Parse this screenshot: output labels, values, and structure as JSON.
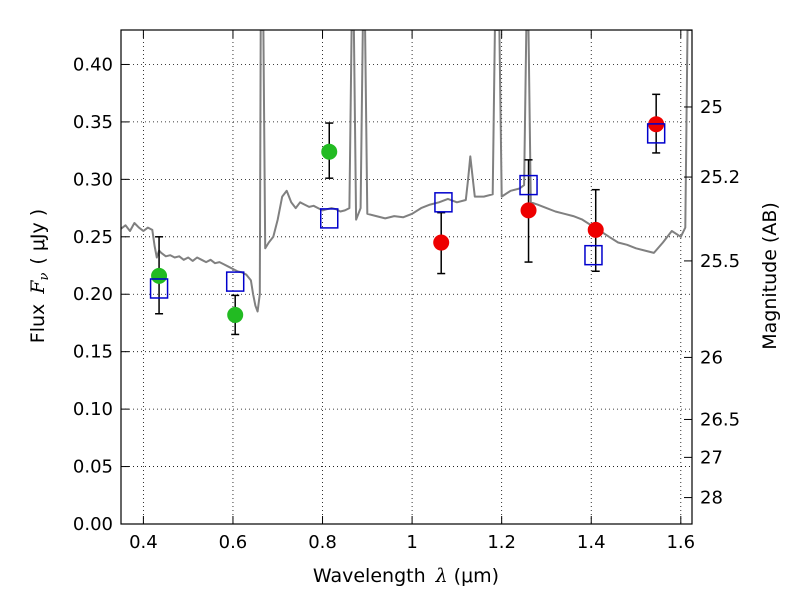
{
  "chart_data": {
    "type": "scatter",
    "title": "",
    "xlabel": "Wavelength",
    "xlabel_symbol": "λ",
    "xlabel_unit": "(μm)",
    "ylabel": "Flux",
    "ylabel_symbol": "F",
    "ylabel_subscript": "ν",
    "ylabel_unit": "( μJy )",
    "y2label": "Magnitude (AB)",
    "xlim": [
      0.35,
      1.625
    ],
    "ylim": [
      0.0,
      0.43
    ],
    "xticks": [
      0.4,
      0.6,
      0.8,
      1.0,
      1.2,
      1.4,
      1.6
    ],
    "xtick_labels": [
      "0.4",
      "0.6",
      "0.8",
      "1",
      "1.2",
      "1.4",
      "1.6"
    ],
    "yticks": [
      0.0,
      0.05,
      0.1,
      0.15,
      0.2,
      0.25,
      0.3,
      0.35,
      0.4
    ],
    "ytick_labels": [
      "0.00",
      "0.05",
      "0.10",
      "0.15",
      "0.20",
      "0.25",
      "0.30",
      "0.35",
      "0.40"
    ],
    "y2ticks": [
      {
        "label": "25",
        "flux": 0.363
      },
      {
        "label": "25.2",
        "flux": 0.302
      },
      {
        "label": "25.5",
        "flux": 0.229
      },
      {
        "label": "26",
        "flux": 0.145
      },
      {
        "label": "26.5",
        "flux": 0.091
      },
      {
        "label": "27",
        "flux": 0.058
      },
      {
        "label": "28",
        "flux": 0.023
      }
    ],
    "grid": true,
    "grid_style": "dotted",
    "colors": {
      "model": "#808080",
      "green_points": "#22bb22",
      "red_points": "#ee0000",
      "model_squares": "#0000cc",
      "errorbars": "#000000"
    },
    "series": [
      {
        "kind": "line",
        "points": [
          [
            0.35,
            0.257
          ],
          [
            0.36,
            0.26
          ],
          [
            0.37,
            0.255
          ],
          [
            0.38,
            0.262
          ],
          [
            0.39,
            0.258
          ],
          [
            0.4,
            0.255
          ],
          [
            0.41,
            0.258
          ],
          [
            0.42,
            0.256
          ],
          [
            0.425,
            0.242
          ],
          [
            0.43,
            0.232
          ],
          [
            0.435,
            0.238
          ],
          [
            0.44,
            0.236
          ],
          [
            0.45,
            0.233
          ],
          [
            0.46,
            0.234
          ],
          [
            0.47,
            0.232
          ],
          [
            0.48,
            0.233
          ],
          [
            0.49,
            0.23
          ],
          [
            0.5,
            0.232
          ],
          [
            0.51,
            0.229
          ],
          [
            0.52,
            0.232
          ],
          [
            0.53,
            0.23
          ],
          [
            0.54,
            0.228
          ],
          [
            0.55,
            0.23
          ],
          [
            0.56,
            0.227
          ],
          [
            0.57,
            0.228
          ],
          [
            0.58,
            0.226
          ],
          [
            0.59,
            0.224
          ],
          [
            0.6,
            0.222
          ],
          [
            0.61,
            0.22
          ],
          [
            0.62,
            0.219
          ],
          [
            0.63,
            0.217
          ],
          [
            0.64,
            0.212
          ],
          [
            0.645,
            0.2
          ],
          [
            0.65,
            0.19
          ],
          [
            0.655,
            0.185
          ],
          [
            0.66,
            0.2
          ],
          [
            0.662,
            0.43
          ],
          [
            0.668,
            0.43
          ],
          [
            0.672,
            0.24
          ],
          [
            0.68,
            0.245
          ],
          [
            0.69,
            0.25
          ],
          [
            0.7,
            0.265
          ],
          [
            0.71,
            0.285
          ],
          [
            0.72,
            0.29
          ],
          [
            0.73,
            0.28
          ],
          [
            0.74,
            0.275
          ],
          [
            0.75,
            0.28
          ],
          [
            0.76,
            0.278
          ],
          [
            0.77,
            0.276
          ],
          [
            0.78,
            0.277
          ],
          [
            0.79,
            0.275
          ],
          [
            0.8,
            0.273
          ],
          [
            0.81,
            0.274
          ],
          [
            0.82,
            0.275
          ],
          [
            0.83,
            0.274
          ],
          [
            0.84,
            0.272
          ],
          [
            0.85,
            0.273
          ],
          [
            0.86,
            0.275
          ],
          [
            0.865,
            0.43
          ],
          [
            0.87,
            0.43
          ],
          [
            0.875,
            0.265
          ],
          [
            0.885,
            0.275
          ],
          [
            0.89,
            0.43
          ],
          [
            0.895,
            0.43
          ],
          [
            0.9,
            0.27
          ],
          [
            0.92,
            0.268
          ],
          [
            0.94,
            0.266
          ],
          [
            0.96,
            0.268
          ],
          [
            0.98,
            0.267
          ],
          [
            1.0,
            0.27
          ],
          [
            1.02,
            0.275
          ],
          [
            1.04,
            0.278
          ],
          [
            1.06,
            0.28
          ],
          [
            1.08,
            0.283
          ],
          [
            1.1,
            0.28
          ],
          [
            1.12,
            0.282
          ],
          [
            1.125,
            0.3
          ],
          [
            1.13,
            0.32
          ],
          [
            1.135,
            0.302
          ],
          [
            1.14,
            0.285
          ],
          [
            1.16,
            0.285
          ],
          [
            1.18,
            0.287
          ],
          [
            1.185,
            0.43
          ],
          [
            1.195,
            0.43
          ],
          [
            1.2,
            0.285
          ],
          [
            1.22,
            0.29
          ],
          [
            1.24,
            0.292
          ],
          [
            1.25,
            0.295
          ],
          [
            1.255,
            0.43
          ],
          [
            1.26,
            0.43
          ],
          [
            1.265,
            0.28
          ],
          [
            1.28,
            0.278
          ],
          [
            1.3,
            0.275
          ],
          [
            1.32,
            0.272
          ],
          [
            1.34,
            0.27
          ],
          [
            1.36,
            0.268
          ],
          [
            1.38,
            0.265
          ],
          [
            1.4,
            0.26
          ],
          [
            1.42,
            0.255
          ],
          [
            1.44,
            0.25
          ],
          [
            1.46,
            0.245
          ],
          [
            1.48,
            0.243
          ],
          [
            1.5,
            0.24
          ],
          [
            1.52,
            0.238
          ],
          [
            1.54,
            0.236
          ],
          [
            1.56,
            0.245
          ],
          [
            1.58,
            0.255
          ],
          [
            1.6,
            0.25
          ],
          [
            1.61,
            0.258
          ],
          [
            1.615,
            0.43
          ],
          [
            1.625,
            0.43
          ]
        ]
      },
      {
        "kind": "scatter",
        "marker": "filled-circle",
        "points": [
          {
            "x": 0.435,
            "y": 0.216,
            "yerr": [
              0.183,
              0.25
            ]
          },
          {
            "x": 0.605,
            "y": 0.182,
            "yerr": [
              0.165,
              0.199
            ]
          },
          {
            "x": 0.815,
            "y": 0.324,
            "yerr": [
              0.301,
              0.349
            ]
          }
        ]
      },
      {
        "kind": "scatter",
        "marker": "filled-circle",
        "points": [
          {
            "x": 1.065,
            "y": 0.245,
            "yerr": [
              0.218,
              0.271
            ]
          },
          {
            "x": 1.26,
            "y": 0.273,
            "yerr": [
              0.228,
              0.317
            ]
          },
          {
            "x": 1.41,
            "y": 0.256,
            "yerr": [
              0.22,
              0.291
            ]
          },
          {
            "x": 1.545,
            "y": 0.348,
            "yerr": [
              0.323,
              0.374
            ]
          }
        ]
      },
      {
        "kind": "scatter",
        "marker": "open-square",
        "points": [
          {
            "x": 0.435,
            "y": 0.205
          },
          {
            "x": 0.605,
            "y": 0.211
          },
          {
            "x": 0.815,
            "y": 0.266
          },
          {
            "x": 1.07,
            "y": 0.28
          },
          {
            "x": 1.26,
            "y": 0.295
          },
          {
            "x": 1.405,
            "y": 0.234
          },
          {
            "x": 1.545,
            "y": 0.34
          }
        ]
      }
    ]
  }
}
